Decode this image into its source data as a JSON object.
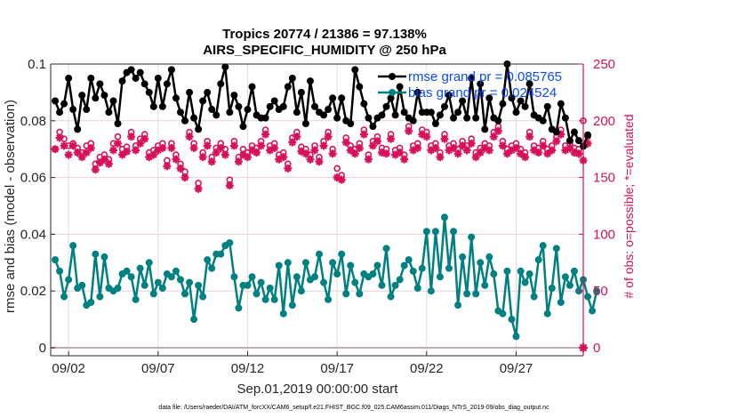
{
  "chart_data": {
    "type": "line",
    "title": [
      "Tropics 20774 / 21386 = 97.138%",
      "AIRS_SPECIFIC_HUMIDITY @ 250 hPa"
    ],
    "xlabel": "Sep.01,2019 00:00:00 start",
    "ylabel_left": "rmse and bias (model - observation)",
    "ylabel_right": "# of obs: o=possible; *=evaluated",
    "footnote": "data file: /Users/raeder/DAI/ATM_forcXX/CAM6_setup/f.e21.FHIST_BGC.f09_025.CAM6assim.011/Diags_NTrS_2019-09/obs_diag_output.nc",
    "x_unit": "days since Sep.01,2019 00:00:00",
    "xlim": [
      1.0,
      30.75
    ],
    "x_ticks": [
      2,
      7,
      12,
      17,
      22,
      27
    ],
    "x_tick_labels": [
      "09/02",
      "09/07",
      "09/12",
      "09/17",
      "09/22",
      "09/27"
    ],
    "ylim_left": [
      0,
      0.1
    ],
    "y_ticks_left": [
      0,
      0.02,
      0.04,
      0.06,
      0.08,
      0.1
    ],
    "y_tick_labels_left": [
      "0",
      "0.02",
      "0.04",
      "0.06",
      "0.08",
      "0.1"
    ],
    "ylim_right": [
      0,
      250
    ],
    "y_ticks_right": [
      0,
      50,
      100,
      150,
      200,
      250
    ],
    "y_tick_labels_right": [
      "0",
      "50",
      "100",
      "150",
      "200",
      "250"
    ],
    "grid": true,
    "legend_position": "top-right",
    "legend": [
      {
        "name": "rmse",
        "label": "rmse grand pr = 0.085765",
        "color": "#000000"
      },
      {
        "name": "bias",
        "label": "bias grand pr = 0.024524",
        "color": "#008080"
      }
    ],
    "colors": {
      "rmse": "#000000",
      "bias": "#008080",
      "obs": "#d6115a",
      "legend_text": "#0a4df2",
      "grid": "#e8d0dc",
      "zero_line": "#c9a9b5"
    },
    "x_start": 1.25,
    "x_step": 0.25,
    "series": [
      {
        "name": "rmse",
        "axis": "left",
        "values": [
          0.087,
          0.083,
          0.086,
          0.095,
          0.084,
          0.077,
          0.089,
          0.084,
          0.095,
          0.088,
          0.093,
          0.089,
          0.083,
          0.087,
          0.079,
          0.094,
          0.097,
          0.098,
          0.095,
          0.097,
          0.093,
          0.09,
          0.085,
          0.095,
          0.085,
          0.093,
          0.098,
          0.088,
          0.083,
          0.08,
          0.09,
          0.081,
          0.077,
          0.087,
          0.09,
          0.084,
          0.082,
          0.093,
          0.099,
          0.083,
          0.089,
          0.085,
          0.078,
          0.084,
          0.092,
          0.082,
          0.081,
          0.081,
          0.085,
          0.087,
          0.084,
          0.085,
          0.092,
          0.095,
          0.083,
          0.09,
          0.079,
          0.094,
          0.085,
          0.083,
          0.082,
          0.084,
          0.088,
          0.081,
          0.088,
          0.08,
          0.079,
          0.098,
          0.092,
          0.086,
          0.081,
          0.078,
          0.081,
          0.082,
          0.085,
          0.088,
          0.082,
          0.092,
          0.083,
          0.081,
          0.08,
          0.09,
          0.083,
          0.083,
          0.083,
          0.079,
          0.082,
          0.085,
          0.089,
          0.081,
          0.083,
          0.087,
          0.081,
          0.095,
          0.081,
          0.093,
          0.077,
          0.088,
          0.081,
          0.08,
          0.086,
          0.1,
          0.088,
          0.083,
          0.087,
          0.085,
          0.093,
          0.082,
          0.081,
          0.08,
          0.085,
          0.077,
          0.076,
          0.086,
          0.081,
          0.073,
          0.076,
          0.073,
          0.071,
          0.075
        ]
      },
      {
        "name": "bias",
        "axis": "left",
        "values": [
          0.031,
          0.027,
          0.018,
          0.024,
          0.036,
          0.021,
          0.022,
          0.015,
          0.016,
          0.033,
          0.018,
          0.032,
          0.021,
          0.02,
          0.021,
          0.026,
          0.027,
          0.025,
          0.017,
          0.028,
          0.022,
          0.03,
          0.019,
          0.023,
          0.021,
          0.026,
          0.025,
          0.027,
          0.024,
          0.019,
          0.023,
          0.01,
          0.022,
          0.018,
          0.031,
          0.028,
          0.033,
          0.033,
          0.036,
          0.037,
          0.025,
          0.014,
          0.022,
          0.022,
          0.025,
          0.019,
          0.023,
          0.017,
          0.021,
          0.017,
          0.029,
          0.012,
          0.03,
          0.015,
          0.025,
          0.02,
          0.03,
          0.024,
          0.025,
          0.033,
          0.023,
          0.017,
          0.03,
          0.026,
          0.033,
          0.019,
          0.029,
          0.023,
          0.019,
          0.026,
          0.025,
          0.026,
          0.029,
          0.022,
          0.035,
          0.018,
          0.022,
          0.024,
          0.029,
          0.031,
          0.027,
          0.021,
          0.028,
          0.041,
          0.02,
          0.041,
          0.025,
          0.046,
          0.028,
          0.041,
          0.015,
          0.032,
          0.019,
          0.039,
          0.019,
          0.03,
          0.022,
          0.032,
          0.026,
          0.013,
          0.012,
          0.027,
          0.01,
          0.004,
          0.027,
          0.023,
          0.026,
          0.018,
          0.031,
          0.036,
          0.012,
          0.021,
          0.035,
          0.016,
          0.025,
          0.022,
          0.027,
          0.02,
          0.024,
          0.018,
          0.013,
          0.02
        ]
      },
      {
        "name": "obs_possible",
        "axis": "right",
        "marker": "o",
        "values": [
          175,
          190,
          184,
          178,
          180,
          176,
          172,
          178,
          180,
          162,
          168,
          170,
          166,
          180,
          186,
          175,
          177,
          190,
          178,
          184,
          188,
          172,
          174,
          178,
          180,
          165,
          180,
          170,
          162,
          155,
          190,
          180,
          145,
          172,
          182,
          168,
          176,
          180,
          175,
          148,
          182,
          168,
          175,
          172,
          178,
          176,
          182,
          192,
          178,
          180,
          170,
          172,
          162,
          185,
          190,
          177,
          175,
          170,
          178,
          168,
          182,
          190,
          175,
          158,
          152,
          185,
          178,
          175,
          180,
          192,
          170,
          182,
          186,
          176,
          175,
          188,
          174,
          176,
          170,
          195,
          178,
          180,
          192,
          190,
          178,
          180,
          172,
          188,
          178,
          180,
          175,
          182,
          178,
          184,
          172,
          176,
          180,
          178,
          190,
          195,
          182,
          175,
          178,
          180,
          175,
          172,
          190,
          178,
          176,
          182,
          175,
          178,
          186,
          192,
          178,
          180,
          176,
          175,
          200,
          186
        ]
      },
      {
        "name": "obs_evaluated",
        "axis": "right",
        "marker": "*",
        "values": [
          175,
          185,
          178,
          170,
          178,
          172,
          168,
          172,
          176,
          157,
          163,
          166,
          162,
          174,
          180,
          170,
          173,
          186,
          174,
          180,
          184,
          168,
          170,
          174,
          176,
          160,
          176,
          166,
          158,
          150,
          186,
          176,
          140,
          168,
          178,
          164,
          172,
          176,
          170,
          143,
          178,
          164,
          170,
          168,
          174,
          172,
          178,
          188,
          174,
          176,
          166,
          168,
          158,
          181,
          186,
          173,
          171,
          166,
          174,
          164,
          178,
          186,
          171,
          150,
          148,
          181,
          174,
          171,
          176,
          188,
          166,
          178,
          182,
          172,
          171,
          184,
          170,
          172,
          166,
          191,
          174,
          176,
          188,
          186,
          174,
          176,
          168,
          184,
          174,
          176,
          171,
          178,
          174,
          180,
          168,
          172,
          176,
          174,
          186,
          191,
          178,
          171,
          174,
          176,
          171,
          168,
          186,
          174,
          172,
          178,
          171,
          174,
          182,
          188,
          174,
          176,
          172,
          171,
          165,
          180
        ]
      }
    ]
  }
}
